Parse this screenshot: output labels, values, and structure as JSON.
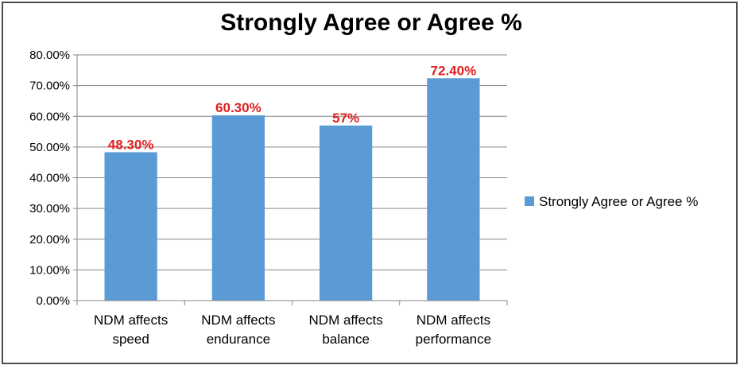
{
  "chart_data": {
    "type": "bar",
    "title": "Strongly Agree or Agree %",
    "categories": [
      [
        "NDM affects",
        "speed"
      ],
      [
        "NDM affects",
        "endurance"
      ],
      [
        "NDM affects",
        "balance"
      ],
      [
        "NDM affects",
        "performance"
      ]
    ],
    "series": [
      {
        "name": "Strongly Agree or  Agree %",
        "values": [
          48.3,
          60.3,
          57,
          72.4
        ],
        "data_labels": [
          "48.30%",
          "60.30%",
          "57%",
          "72.40%"
        ],
        "color": "#5b9bd5"
      }
    ],
    "y_ticks": [
      "0.00%",
      "10.00%",
      "20.00%",
      "30.00%",
      "40.00%",
      "50.00%",
      "60.00%",
      "70.00%",
      "80.00%"
    ],
    "ylim": [
      0,
      80
    ],
    "grid": true,
    "legend_position": "right",
    "data_label_color": "#e02020"
  }
}
